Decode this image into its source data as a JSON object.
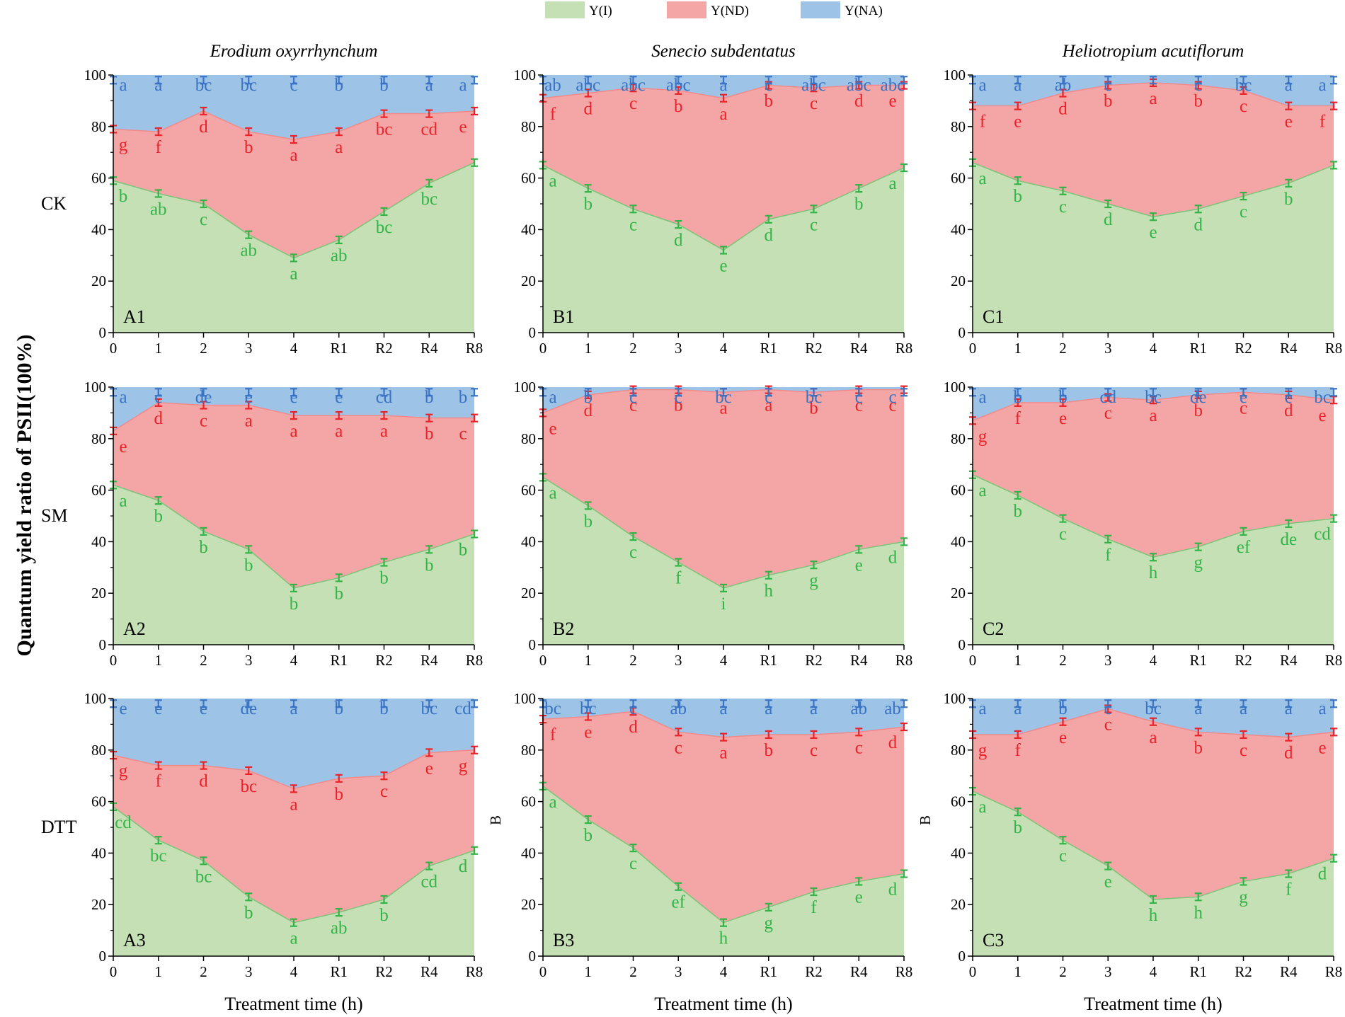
{
  "legend": {
    "entries": [
      {
        "label": "Y(I)",
        "color": "#c5e0b4"
      },
      {
        "label": "Y(ND)",
        "color": "#f4a5a5"
      },
      {
        "label": "Y(NA)",
        "color": "#9dc3e6"
      }
    ]
  },
  "columns": [
    "Erodium oxyrrhynchum",
    "Senecio subdentatus",
    "Heliotropium acutiflorum"
  ],
  "rows": [
    "CK",
    "SM",
    "DTT"
  ],
  "ylabel": "Quantum yield ratio of PSII(100%)",
  "xlabel": "Treatment time (h)",
  "colors": {
    "yi_fill": "#c5e0b4",
    "ynd_fill": "#f4a5a5",
    "yna_fill": "#9dc3e6",
    "yi_text": "#33b449",
    "ynd_text": "#e8232a",
    "yna_text": "#3a73c4",
    "yi_line": "#7cc47a",
    "ynd_line": "#f28a8a"
  },
  "chart_data": {
    "type": "area",
    "x": [
      "0",
      "1",
      "2",
      "3",
      "4",
      "R1",
      "R2",
      "R4",
      "R8"
    ],
    "ylim": [
      0,
      100
    ],
    "yticks": [
      "0",
      "20",
      "40",
      "60",
      "80",
      "100"
    ],
    "panels": [
      {
        "label": "A1",
        "col": 0,
        "row": 0,
        "yi": [
          59,
          54,
          50,
          38,
          29,
          36,
          47,
          58,
          66
        ],
        "yi_sum": [
          79,
          78,
          86,
          78,
          75,
          78,
          85,
          85,
          86
        ],
        "yi_letters": [
          "b",
          "ab",
          "c",
          "ab",
          "a",
          "ab",
          "bc",
          "bc",
          ""
        ],
        "ynd_letters": [
          "g",
          "f",
          "d",
          "b",
          "a",
          "a",
          "bc",
          "cd",
          "e"
        ],
        "yna_letters": [
          "a",
          "a",
          "bc",
          "bc",
          "c",
          "b",
          "b",
          "a",
          "a"
        ],
        "y_axis_letter": ""
      },
      {
        "label": "B1",
        "col": 1,
        "row": 0,
        "yi": [
          65,
          56,
          48,
          42,
          32,
          44,
          48,
          56,
          64
        ],
        "yi_sum": [
          91,
          93,
          95,
          94,
          91,
          96,
          95,
          96,
          96
        ],
        "yi_letters": [
          "a",
          "b",
          "c",
          "d",
          "e",
          "d",
          "c",
          "b",
          "a"
        ],
        "ynd_letters": [
          "f",
          "d",
          "c",
          "b",
          "a",
          "b",
          "c",
          "d",
          "e"
        ],
        "yna_letters": [
          "ab",
          "abc",
          "abc",
          "abc",
          "a",
          "c",
          "abc",
          "abc",
          "abc"
        ],
        "y_axis_letter": ""
      },
      {
        "label": "C1",
        "col": 2,
        "row": 0,
        "yi": [
          66,
          59,
          55,
          50,
          45,
          48,
          53,
          58,
          65
        ],
        "yi_sum": [
          88,
          88,
          93,
          96,
          97,
          96,
          94,
          88,
          88
        ],
        "yi_letters": [
          "a",
          "b",
          "c",
          "d",
          "e",
          "d",
          "c",
          "b",
          ""
        ],
        "ynd_letters": [
          "f",
          "e",
          "d",
          "b",
          "a",
          "b",
          "c",
          "e",
          "f"
        ],
        "yna_letters": [
          "a",
          "a",
          "ab",
          "c",
          "",
          "c",
          "bc",
          "a",
          "a"
        ],
        "y_axis_letter": ""
      },
      {
        "label": "A2",
        "col": 0,
        "row": 1,
        "yi": [
          62,
          56,
          44,
          37,
          22,
          26,
          32,
          37,
          43
        ],
        "yi_sum": [
          83,
          94,
          93,
          93,
          89,
          89,
          89,
          88,
          88
        ],
        "yi_letters": [
          "a",
          "b",
          "b",
          "b",
          "b",
          "b",
          "b",
          "b",
          "b"
        ],
        "ynd_letters": [
          "e",
          "d",
          "c",
          "a",
          "a",
          "a",
          "a",
          "b",
          "c"
        ],
        "yna_letters": [
          "a",
          "c",
          "de",
          "e",
          "e",
          "e",
          "cd",
          "b",
          "b"
        ],
        "y_axis_letter": ""
      },
      {
        "label": "B2",
        "col": 1,
        "row": 1,
        "yi": [
          65,
          54,
          42,
          32,
          22,
          27,
          31,
          37,
          40
        ],
        "yi_sum": [
          90,
          97,
          99,
          99,
          98,
          99,
          98,
          99,
          99
        ],
        "yi_letters": [
          "a",
          "b",
          "c",
          "f",
          "i",
          "h",
          "g",
          "e",
          "d"
        ],
        "ynd_letters": [
          "e",
          "d",
          "c",
          "b",
          "a",
          "a",
          "b",
          "c",
          "c"
        ],
        "yna_letters": [
          "a",
          "b",
          "c",
          "c",
          "bc",
          "c",
          "bc",
          "c",
          "c"
        ],
        "y_axis_letter": ""
      },
      {
        "label": "C2",
        "col": 2,
        "row": 1,
        "yi": [
          66,
          58,
          49,
          41,
          34,
          38,
          44,
          47,
          49
        ],
        "yi_sum": [
          87,
          94,
          94,
          96,
          95,
          97,
          98,
          97,
          95
        ],
        "yi_letters": [
          "a",
          "b",
          "c",
          "f",
          "h",
          "g",
          "ef",
          "de",
          "cd"
        ],
        "ynd_letters": [
          "g",
          "f",
          "e",
          "c",
          "a",
          "b",
          "c",
          "d",
          "e"
        ],
        "yna_letters": [
          "a",
          "b",
          "b",
          "cd",
          "bc",
          "de",
          "e",
          "e",
          "bc"
        ],
        "y_axis_letter": ""
      },
      {
        "label": "A3",
        "col": 0,
        "row": 2,
        "yi": [
          58,
          45,
          37,
          23,
          13,
          17,
          22,
          35,
          41
        ],
        "yi_sum": [
          78,
          74,
          74,
          72,
          65,
          69,
          70,
          79,
          80
        ],
        "yi_letters": [
          "cd",
          "bc",
          "bc",
          "b",
          "a",
          "ab",
          "b",
          "cd",
          "d"
        ],
        "ynd_letters": [
          "g",
          "f",
          "d",
          "bc",
          "a",
          "b",
          "c",
          "e",
          "g"
        ],
        "yna_letters": [
          "e",
          "e",
          "e",
          "de",
          "a",
          "b",
          "b",
          "bc",
          "cd"
        ],
        "y_axis_letter": ""
      },
      {
        "label": "B3",
        "col": 1,
        "row": 2,
        "yi": [
          66,
          53,
          42,
          27,
          13,
          19,
          25,
          29,
          32
        ],
        "yi_sum": [
          92,
          93,
          95,
          87,
          85,
          86,
          86,
          87,
          89
        ],
        "yi_letters": [
          "a",
          "b",
          "c",
          "ef",
          "h",
          "g",
          "f",
          "e",
          "d"
        ],
        "ynd_letters": [
          "f",
          "e",
          "d",
          "c",
          "a",
          "b",
          "c",
          "c",
          "d"
        ],
        "yna_letters": [
          "bc",
          "bc",
          "c",
          "ab",
          "a",
          "a",
          "a",
          "ab",
          "ab"
        ],
        "y_axis_letter": "B"
      },
      {
        "label": "C3",
        "col": 2,
        "row": 2,
        "yi": [
          64,
          56,
          45,
          35,
          22,
          23,
          29,
          32,
          38
        ],
        "yi_sum": [
          86,
          86,
          91,
          96,
          91,
          87,
          86,
          85,
          87
        ],
        "yi_letters": [
          "a",
          "b",
          "c",
          "e",
          "h",
          "h",
          "g",
          "f",
          "d"
        ],
        "ynd_letters": [
          "g",
          "f",
          "e",
          "c",
          "a",
          "b",
          "c",
          "d",
          "e"
        ],
        "yna_letters": [
          "a",
          "a",
          "b",
          "c",
          "bc",
          "a",
          "a",
          "a",
          "a"
        ],
        "y_axis_letter": "B"
      }
    ]
  }
}
